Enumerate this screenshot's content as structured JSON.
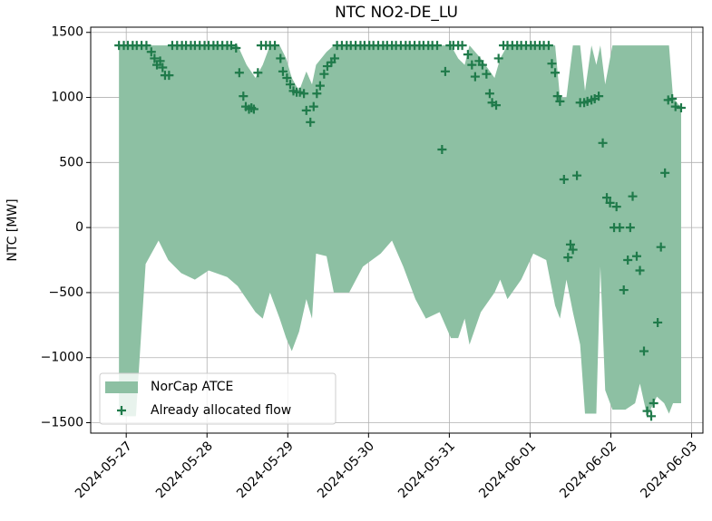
{
  "chart_data": {
    "type": "area",
    "title": "NTC NO2-DE_LU",
    "ylabel": "NTC [MW]",
    "xlim": [
      -0.44,
      7.14
    ],
    "ylim": [
      -1580,
      1540
    ],
    "xticks": [
      {
        "value": 0,
        "label": "2024-05-27"
      },
      {
        "value": 1,
        "label": "2024-05-28"
      },
      {
        "value": 2,
        "label": "2024-05-29"
      },
      {
        "value": 3,
        "label": "2024-05-30"
      },
      {
        "value": 4,
        "label": "2024-05-31"
      },
      {
        "value": 5,
        "label": "2024-06-01"
      },
      {
        "value": 6,
        "label": "2024-06-02"
      },
      {
        "value": 7,
        "label": "2024-06-03"
      }
    ],
    "yticks": [
      {
        "value": -1500,
        "label": "−1500"
      },
      {
        "value": -1000,
        "label": "−1000"
      },
      {
        "value": -500,
        "label": "−500"
      },
      0,
      500,
      1000,
      1500
    ],
    "grid": true,
    "legend": "lower left",
    "series": [
      {
        "name": "NorCap ATCE",
        "type": "area",
        "color": "#8dc0a3",
        "x": [
          -0.09,
          0.12,
          0.24,
          0.4,
          0.52,
          0.68,
          0.85,
          1.02,
          1.25,
          1.38,
          1.49,
          1.6,
          1.69,
          1.78,
          1.9,
          1.98,
          2.05,
          2.14,
          2.23,
          2.3,
          2.35,
          2.48,
          2.57,
          2.76,
          2.93,
          3.15,
          3.29,
          3.43,
          3.58,
          3.71,
          3.88,
          4.02,
          4.11,
          4.19,
          4.25,
          4.39,
          4.56,
          4.63,
          4.72,
          4.89,
          5.04,
          5.2,
          5.31,
          5.37,
          5.45,
          5.53,
          5.62,
          5.68,
          5.76,
          5.82,
          5.87,
          5.93,
          6.02,
          6.18,
          6.3,
          6.36,
          6.45,
          6.57,
          6.66,
          6.72,
          6.77,
          6.87
        ],
        "upper": [
          1400,
          1400,
          1400,
          1400,
          1400,
          1400,
          1400,
          1400,
          1400,
          1400,
          1250,
          1150,
          1250,
          1400,
          1400,
          1300,
          1150,
          1050,
          1200,
          1100,
          1250,
          1350,
          1400,
          1400,
          1400,
          1400,
          1400,
          1400,
          1400,
          1400,
          1400,
          1400,
          1300,
          1250,
          1400,
          1300,
          1150,
          1300,
          1400,
          1400,
          1400,
          1400,
          1400,
          1000,
          1000,
          1400,
          1400,
          1050,
          1400,
          1250,
          1400,
          1100,
          1400,
          1400,
          1400,
          1400,
          1400,
          1400,
          1400,
          1400,
          1000,
          920
        ],
        "lower": [
          -1450,
          -1450,
          -280,
          -100,
          -250,
          -350,
          -400,
          -330,
          -380,
          -450,
          -550,
          -650,
          -700,
          -500,
          -700,
          -850,
          -950,
          -800,
          -550,
          -700,
          -200,
          -220,
          -500,
          -500,
          -300,
          -200,
          -100,
          -300,
          -550,
          -700,
          -650,
          -850,
          -850,
          -700,
          -900,
          -650,
          -500,
          -400,
          -550,
          -400,
          -200,
          -250,
          -600,
          -700,
          -400,
          -650,
          -900,
          -1430,
          -1430,
          -1430,
          -300,
          -1250,
          -1400,
          -1400,
          -1350,
          -1200,
          -1450,
          -1300,
          -1350,
          -1430,
          -1350,
          -1350
        ]
      },
      {
        "name": "Already allocated flow",
        "type": "scatter",
        "color": "#1f7a4a",
        "x": [
          -0.09,
          -0.03,
          0.02,
          0.08,
          0.13,
          0.19,
          0.25,
          0.31,
          0.35,
          0.38,
          0.42,
          0.45,
          0.48,
          0.53,
          0.57,
          0.63,
          0.69,
          0.74,
          0.8,
          0.85,
          0.91,
          0.97,
          1.02,
          1.08,
          1.13,
          1.19,
          1.25,
          1.3,
          1.36,
          1.4,
          1.45,
          1.48,
          1.52,
          1.55,
          1.58,
          1.63,
          1.67,
          1.73,
          1.78,
          1.84,
          1.91,
          1.94,
          1.99,
          2.03,
          2.07,
          2.11,
          2.15,
          2.2,
          2.23,
          2.28,
          2.32,
          2.36,
          2.4,
          2.45,
          2.49,
          2.54,
          2.58,
          2.61,
          2.67,
          2.73,
          2.78,
          2.84,
          2.9,
          2.95,
          3.01,
          3.06,
          3.12,
          3.18,
          3.23,
          3.29,
          3.34,
          3.4,
          3.46,
          3.51,
          3.57,
          3.63,
          3.68,
          3.74,
          3.79,
          3.85,
          3.91,
          3.95,
          4.01,
          4.05,
          4.11,
          4.16,
          4.23,
          4.28,
          4.32,
          4.37,
          4.41,
          4.46,
          4.5,
          4.53,
          4.58,
          4.61,
          4.67,
          4.72,
          4.78,
          4.84,
          4.89,
          4.95,
          5.01,
          5.06,
          5.12,
          5.17,
          5.23,
          5.27,
          5.31,
          5.34,
          5.37,
          5.42,
          5.47,
          5.5,
          5.53,
          5.58,
          5.62,
          5.67,
          5.71,
          5.76,
          5.8,
          5.85,
          5.9,
          5.95,
          5.99,
          6.04,
          6.07,
          6.11,
          6.16,
          6.21,
          6.24,
          6.27,
          6.32,
          6.36,
          6.41,
          6.45,
          6.5,
          6.53,
          6.58,
          6.62,
          6.67,
          6.71,
          6.76,
          6.8,
          6.87
        ],
        "values": [
          1400,
          1400,
          1400,
          1400,
          1400,
          1400,
          1400,
          1350,
          1300,
          1250,
          1280,
          1230,
          1170,
          1170,
          1400,
          1400,
          1400,
          1400,
          1400,
          1400,
          1400,
          1400,
          1400,
          1400,
          1400,
          1400,
          1400,
          1400,
          1380,
          1190,
          1010,
          930,
          910,
          920,
          910,
          1190,
          1400,
          1400,
          1400,
          1400,
          1300,
          1200,
          1150,
          1100,
          1050,
          1040,
          1040,
          1030,
          900,
          810,
          930,
          1030,
          1090,
          1180,
          1240,
          1270,
          1300,
          1400,
          1400,
          1400,
          1400,
          1400,
          1400,
          1400,
          1400,
          1400,
          1400,
          1400,
          1400,
          1400,
          1400,
          1400,
          1400,
          1400,
          1400,
          1400,
          1400,
          1400,
          1400,
          1400,
          600,
          1200,
          1400,
          1400,
          1400,
          1400,
          1330,
          1250,
          1160,
          1280,
          1250,
          1180,
          1030,
          960,
          940,
          1300,
          1400,
          1400,
          1400,
          1400,
          1400,
          1400,
          1400,
          1400,
          1400,
          1400,
          1400,
          1260,
          1190,
          1010,
          970,
          370,
          -230,
          -130,
          -170,
          400,
          960,
          960,
          970,
          980,
          990,
          1010,
          650,
          230,
          190,
          0,
          160,
          0,
          -480,
          -250,
          0,
          240,
          -220,
          -330,
          -950,
          -1410,
          -1450,
          -1350,
          -730,
          -150,
          420,
          980,
          990,
          930,
          920
        ]
      }
    ]
  }
}
